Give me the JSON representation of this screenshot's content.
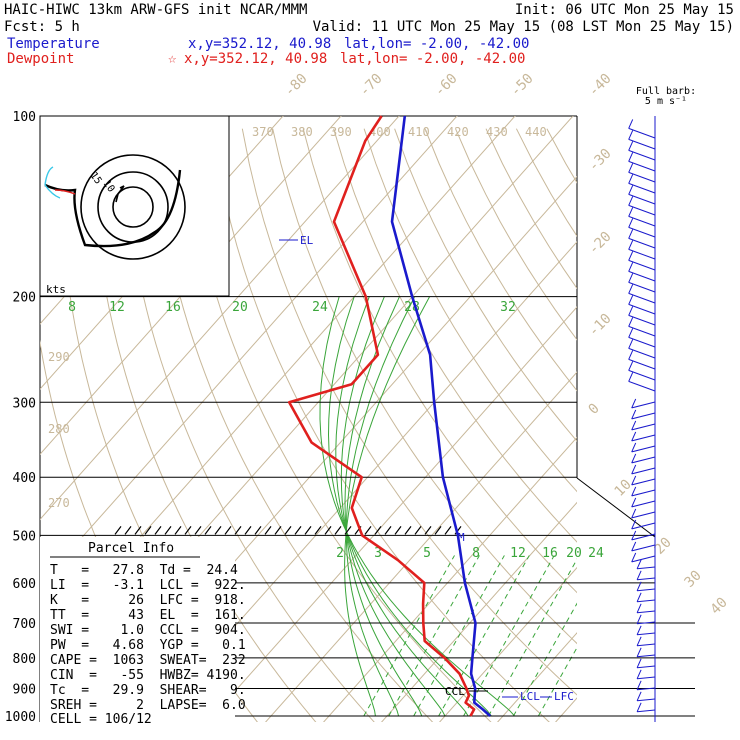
{
  "header": {
    "line1_left": "HAIC-HIWC 13km ARW-GFS init   NCAR/MMM",
    "line1_right": "Init: 06 UTC Mon 25 May 15",
    "line2_left": "Fcst:    5 h",
    "line2_right": "Valid: 11 UTC Mon 25 May 15 (08 LST Mon 25 May 15)",
    "temp_label": "Temperature",
    "temp_xy": "x,y=352.12, 40.98",
    "temp_latlon": "lat,lon= -2.00, -42.00",
    "dew_label": "Dewpoint",
    "dew_xy": "x,y=352.12, 40.98",
    "dew_latlon": "lat,lon= -2.00, -42.00",
    "star": "☆"
  },
  "barb_legend": {
    "line1": "Full barb:",
    "line2": "5 m s⁻¹"
  },
  "colors": {
    "temperature": "#1a1acc",
    "dewpoint": "#e0201e",
    "isotherm": "#c8b89a",
    "mixing": "#3aa53a",
    "hodo": "#3ac8e8"
  },
  "chart_data": {
    "type": "line",
    "title": "",
    "y_axis": "pressure (hPa), log scale",
    "pressure_ticks": [
      "100",
      "200",
      "300",
      "400",
      "500",
      "600",
      "700",
      "800",
      "900",
      "1000"
    ],
    "isotherm_labels": [
      "-80",
      "-70",
      "-60",
      "-50",
      "-40",
      "-30",
      "-20",
      "-10",
      "0",
      "10",
      "20",
      "30",
      "40"
    ],
    "theta_labels": [
      "370",
      "380",
      "390",
      "400",
      "410",
      "420",
      "430",
      "440"
    ],
    "theta_left_labels": [
      "290",
      "280",
      "270"
    ],
    "mixing_top_labels": [
      "8",
      "12",
      "16",
      "20",
      "24",
      "28",
      "32"
    ],
    "mixing_bottom_labels": [
      "2",
      "3",
      "5",
      "8",
      "12",
      "16",
      "20",
      "24"
    ],
    "series": [
      {
        "name": "Temperature",
        "color": "#1a1acc",
        "points": [
          [
            1000,
            27.8
          ],
          [
            975,
            25.5
          ],
          [
            950,
            23
          ],
          [
            925,
            22
          ],
          [
            900,
            21
          ],
          [
            850,
            18
          ],
          [
            800,
            15.8
          ],
          [
            700,
            11
          ],
          [
            600,
            3
          ],
          [
            500,
            -5.5
          ],
          [
            400,
            -17
          ],
          [
            300,
            -30
          ],
          [
            250,
            -38
          ],
          [
            200,
            -50
          ],
          [
            150,
            -65
          ],
          [
            100,
            -79
          ]
        ]
      },
      {
        "name": "Dewpoint",
        "color": "#e0201e",
        "points": [
          [
            1000,
            24.4
          ],
          [
            975,
            24
          ],
          [
            950,
            21.5
          ],
          [
            925,
            21
          ],
          [
            900,
            19.5
          ],
          [
            850,
            16
          ],
          [
            800,
            11
          ],
          [
            750,
            5
          ],
          [
            700,
            2
          ],
          [
            650,
            -1
          ],
          [
            600,
            -4
          ],
          [
            550,
            -12
          ],
          [
            500,
            -22
          ],
          [
            450,
            -28
          ],
          [
            400,
            -31
          ],
          [
            350,
            -45
          ],
          [
            300,
            -55
          ],
          [
            280,
            -47
          ],
          [
            250,
            -47
          ],
          [
            200,
            -58
          ],
          [
            150,
            -75
          ],
          [
            110,
            -82
          ],
          [
            100,
            -83
          ]
        ]
      }
    ],
    "annotations": {
      "el": "EL",
      "ccl": "CCL",
      "lcl": "LCL",
      "lfc": "LFC",
      "m": "M"
    }
  },
  "hodograph": {
    "units": "kts",
    "rings": [
      "15",
      "10"
    ]
  },
  "parcel_info": {
    "title": "Parcel Info",
    "rows": [
      "T   =   27.8  Td =  24.4",
      "LI  =   -3.1  LCL =  922.",
      "K   =     26  LFC =  918.",
      "TT  =     43  EL  =  161.",
      "SWI =    1.0  CCL =  904.",
      "PW  =   4.68  YGP =   0.1",
      "CAPE =  1063  SWEAT=  232",
      "CIN  =   -55  HWBZ= 4190.",
      "Tc  =   29.9  SHEAR=   9.",
      "SREH =     2  LAPSE=  6.0",
      "CELL = 106/12"
    ]
  }
}
